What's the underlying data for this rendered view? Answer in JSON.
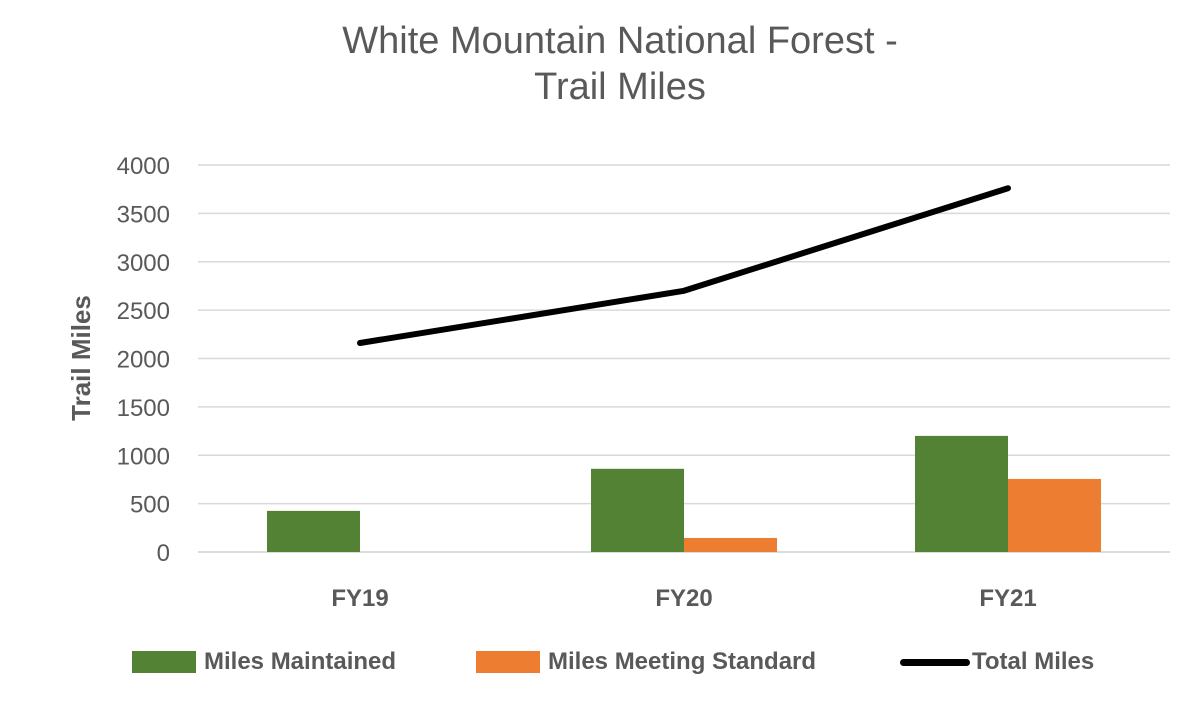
{
  "chart_data": {
    "type": "bar",
    "title": "White Mountain National Forest - Trail Miles",
    "title_lines": [
      "White Mountain National Forest -",
      "Trail Miles"
    ],
    "xlabel": "",
    "ylabel": "Trail Miles",
    "ylim": [
      0,
      4000
    ],
    "yticks": [
      0,
      500,
      1000,
      1500,
      2000,
      2500,
      3000,
      3500,
      4000
    ],
    "grid": true,
    "legend_position": "bottom",
    "categories": [
      "FY19",
      "FY20",
      "FY21"
    ],
    "series": [
      {
        "name": "Miles Maintained",
        "type": "bar",
        "color": "#548235",
        "values": [
          425,
          860,
          1200
        ]
      },
      {
        "name": "Miles Meeting Standard",
        "type": "bar",
        "color": "#ED7D31",
        "values": [
          0,
          145,
          755
        ]
      },
      {
        "name": "Total Miles",
        "type": "line",
        "color": "#000000",
        "values": [
          2160,
          2700,
          3760
        ]
      }
    ]
  },
  "legend": {
    "items": [
      "Miles Maintained",
      "Miles Meeting Standard",
      "Total Miles"
    ]
  }
}
